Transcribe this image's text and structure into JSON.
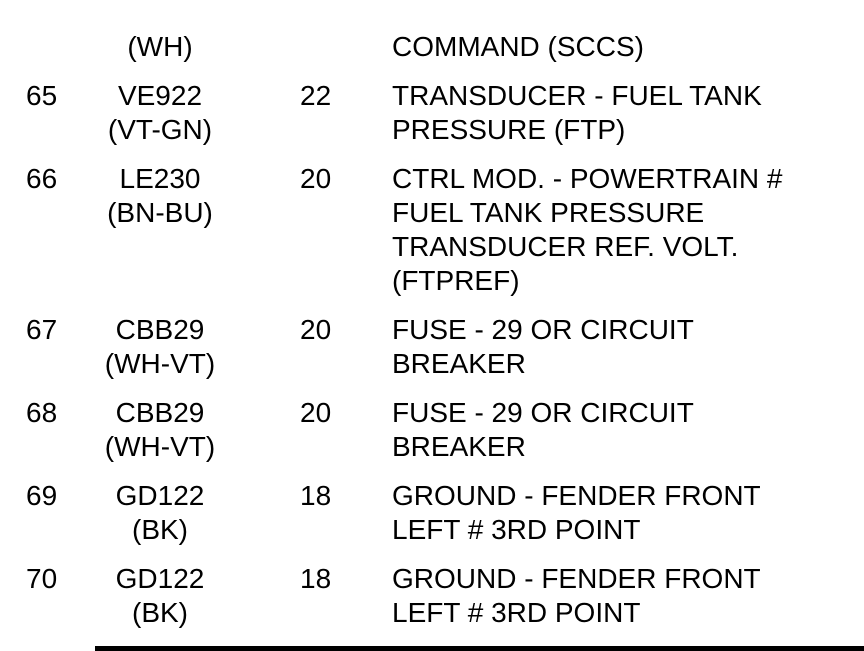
{
  "table": {
    "rows": [
      {
        "pin": "",
        "wire": "(WH)",
        "gauge": "",
        "desc": "COMMAND (SCCS)"
      },
      {
        "pin": "65",
        "wire": "VE922\n(VT-GN)",
        "gauge": "22",
        "desc": "TRANSDUCER - FUEL TANK\nPRESSURE (FTP)"
      },
      {
        "pin": "66",
        "wire": "LE230\n(BN-BU)",
        "gauge": "20",
        "desc": "CTRL MOD. - POWERTRAIN #\nFUEL TANK PRESSURE\nTRANSDUCER REF. VOLT.\n(FTPREF)"
      },
      {
        "pin": "67",
        "wire": "CBB29\n(WH-VT)",
        "gauge": "20",
        "desc": "FUSE - 29 OR CIRCUIT\nBREAKER"
      },
      {
        "pin": "68",
        "wire": "CBB29\n(WH-VT)",
        "gauge": "20",
        "desc": "FUSE - 29 OR CIRCUIT\nBREAKER"
      },
      {
        "pin": "69",
        "wire": "GD122\n(BK)",
        "gauge": "18",
        "desc": "GROUND - FENDER FRONT\nLEFT # 3RD POINT"
      },
      {
        "pin": "70",
        "wire": "GD122\n(BK)",
        "gauge": "18",
        "desc": "GROUND - FENDER FRONT\nLEFT # 3RD POINT"
      }
    ]
  },
  "colors": {
    "text": "#000000",
    "background": "#ffffff",
    "divider": "#000000"
  }
}
